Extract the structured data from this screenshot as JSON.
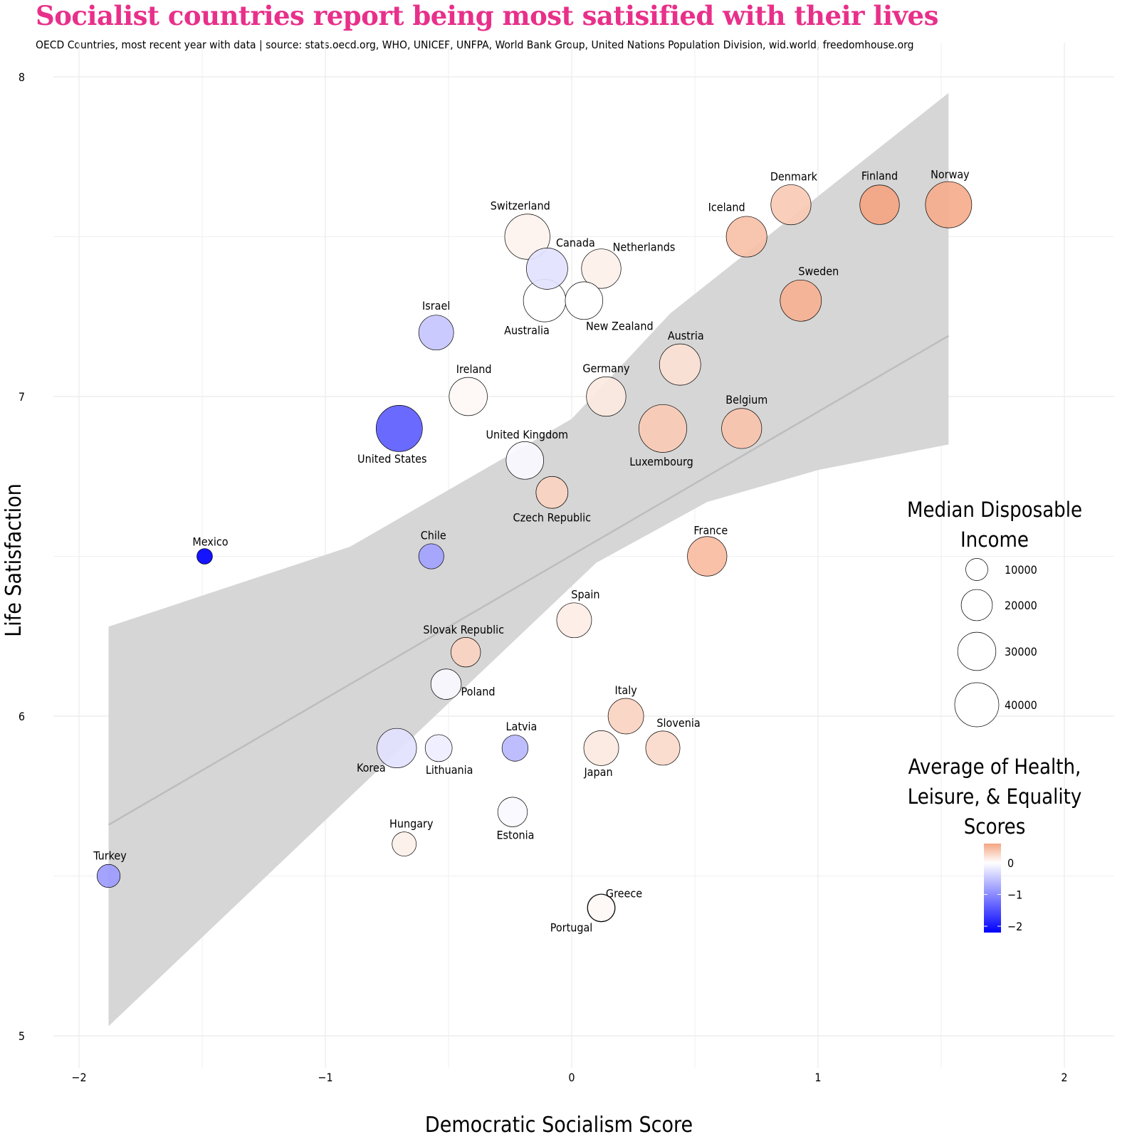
{
  "title": "Socialist countries report being most satisified with their lives",
  "subtitle": "OECD Countries, most recent year with data  |  source: stats.oecd.org, WHO, UNICEF, UNFPA, World Bank Group, United Nations Population Division, wid.world, freedomhouse.org",
  "chart_data": {
    "type": "scatter",
    "xlabel": "Democratic Socialism Score",
    "ylabel": "Life Satisfaction",
    "xlim": [
      -2.2,
      2.2
    ],
    "ylim": [
      4.9,
      8.05
    ],
    "x_ticks": [
      -2,
      -1,
      0,
      1,
      2
    ],
    "y_ticks": [
      5,
      6,
      7,
      8
    ],
    "grid": true,
    "trend": {
      "line": {
        "x1": -1.88,
        "y1": 5.66,
        "x2": 1.53,
        "y2": 7.19
      },
      "band_upper": [
        [
          -1.88,
          6.28
        ],
        [
          -0.9,
          6.53
        ],
        [
          0,
          6.93
        ],
        [
          0.4,
          7.26
        ],
        [
          1.53,
          7.95
        ]
      ],
      "band_lower": [
        [
          -1.88,
          5.03
        ],
        [
          0.1,
          6.48
        ],
        [
          0.55,
          6.67
        ],
        [
          1.0,
          6.77
        ],
        [
          1.53,
          6.85
        ]
      ]
    },
    "size_legend": {
      "title": [
        "Median Disposable",
        "Income"
      ],
      "values": [
        10000,
        20000,
        30000,
        40000
      ],
      "labels": [
        "10000",
        "20000",
        "30000",
        "40000"
      ]
    },
    "color_legend": {
      "title": [
        "Average of Health,",
        "Leisure, & Equality",
        "Scores"
      ],
      "ticks": [
        0,
        -1,
        -2
      ],
      "labels": [
        "0",
        "−1",
        "−2"
      ],
      "range": [
        -2.2,
        0.6
      ],
      "low_color": "#0000ff",
      "mid_color": "#ffffff",
      "high_color": "#f4a582"
    },
    "points": [
      {
        "name": "Norway",
        "x": 1.53,
        "y": 7.6,
        "income": 44000,
        "score": 0.55
      },
      {
        "name": "Finland",
        "x": 1.25,
        "y": 7.6,
        "income": 32000,
        "score": 0.6
      },
      {
        "name": "Denmark",
        "x": 0.89,
        "y": 7.6,
        "income": 33000,
        "score": 0.35
      },
      {
        "name": "Iceland",
        "x": 0.71,
        "y": 7.5,
        "income": 34000,
        "score": 0.42
      },
      {
        "name": "Sweden",
        "x": 0.93,
        "y": 7.3,
        "income": 35000,
        "score": 0.52
      },
      {
        "name": "Switzerland",
        "x": -0.18,
        "y": 7.5,
        "income": 42000,
        "score": 0.08
      },
      {
        "name": "Canada",
        "x": -0.1,
        "y": 7.4,
        "income": 35000,
        "score": -0.25
      },
      {
        "name": "Netherlands",
        "x": 0.12,
        "y": 7.4,
        "income": 32000,
        "score": 0.1
      },
      {
        "name": "Australia",
        "x": -0.11,
        "y": 7.3,
        "income": 37000,
        "score": 0.0
      },
      {
        "name": "New Zealand",
        "x": 0.05,
        "y": 7.3,
        "income": 29000,
        "score": 0.0
      },
      {
        "name": "Israel",
        "x": -0.55,
        "y": 7.2,
        "income": 25000,
        "score": -0.5
      },
      {
        "name": "Ireland",
        "x": -0.42,
        "y": 7.0,
        "income": 30000,
        "score": 0.05
      },
      {
        "name": "Germany",
        "x": 0.14,
        "y": 7.0,
        "income": 32000,
        "score": 0.15
      },
      {
        "name": "Austria",
        "x": 0.44,
        "y": 7.1,
        "income": 35000,
        "score": 0.2
      },
      {
        "name": "Belgium",
        "x": 0.69,
        "y": 6.9,
        "income": 33000,
        "score": 0.4
      },
      {
        "name": "Luxembourg",
        "x": 0.37,
        "y": 6.9,
        "income": 47000,
        "score": 0.35
      },
      {
        "name": "United States",
        "x": -0.7,
        "y": 6.9,
        "income": 44000,
        "score": -1.4
      },
      {
        "name": "United Kingdom",
        "x": -0.19,
        "y": 6.8,
        "income": 29000,
        "score": -0.05
      },
      {
        "name": "Czech Republic",
        "x": -0.08,
        "y": 6.7,
        "income": 21000,
        "score": 0.3
      },
      {
        "name": "Mexico",
        "x": -1.49,
        "y": 6.5,
        "income": 5000,
        "score": -2.2
      },
      {
        "name": "Chile",
        "x": -0.57,
        "y": 6.5,
        "income": 13000,
        "score": -0.8
      },
      {
        "name": "France",
        "x": 0.55,
        "y": 6.5,
        "income": 32000,
        "score": 0.45
      },
      {
        "name": "Spain",
        "x": 0.01,
        "y": 6.3,
        "income": 25000,
        "score": 0.12
      },
      {
        "name": "Slovak Republic",
        "x": -0.43,
        "y": 6.2,
        "income": 18000,
        "score": 0.3
      },
      {
        "name": "Poland",
        "x": -0.51,
        "y": 6.1,
        "income": 19000,
        "score": -0.05
      },
      {
        "name": "Italy",
        "x": 0.22,
        "y": 6.0,
        "income": 26000,
        "score": 0.3
      },
      {
        "name": "Slovenia",
        "x": 0.37,
        "y": 5.9,
        "income": 24000,
        "score": 0.25
      },
      {
        "name": "Japan",
        "x": 0.12,
        "y": 5.9,
        "income": 25000,
        "score": 0.15
      },
      {
        "name": "Latvia",
        "x": -0.23,
        "y": 5.9,
        "income": 14000,
        "score": -0.6
      },
      {
        "name": "Korea",
        "x": -0.71,
        "y": 5.9,
        "income": 32000,
        "score": -0.25
      },
      {
        "name": "Lithuania",
        "x": -0.54,
        "y": 5.9,
        "income": 15000,
        "score": -0.15
      },
      {
        "name": "Estonia",
        "x": -0.24,
        "y": 5.7,
        "income": 18000,
        "score": -0.05
      },
      {
        "name": "Hungary",
        "x": -0.68,
        "y": 5.6,
        "income": 12000,
        "score": 0.1
      },
      {
        "name": "Turkey",
        "x": -1.88,
        "y": 5.5,
        "income": 11000,
        "score": -0.85
      },
      {
        "name": "Greece",
        "x": 0.12,
        "y": 5.4,
        "income": 15000,
        "score": 0.05
      },
      {
        "name": "Portugal",
        "x": 0.12,
        "y": 5.4,
        "income": 16000,
        "score": 0.0
      }
    ]
  }
}
